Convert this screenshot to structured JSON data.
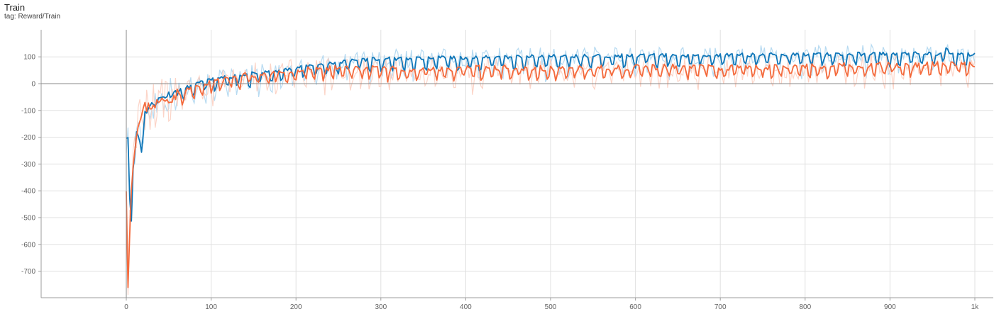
{
  "header": {
    "title": "Train",
    "subtitle": "tag: Reward/Train"
  },
  "colors": {
    "series_blue": "#0f76b8",
    "series_orange": "#f46a3c",
    "raw_blue": "#a9d3ef",
    "raw_orange": "#fbcdbd",
    "grid": "#e0e0e0",
    "axis": "#9e9e9e"
  },
  "chart_data": {
    "type": "line",
    "title": "Train",
    "subtitle": "tag: Reward/Train",
    "xlabel": "",
    "ylabel": "",
    "xlim": [
      -100,
      1000
    ],
    "ylim": [
      -800,
      200
    ],
    "x_ticks": [
      0,
      100,
      200,
      300,
      400,
      500,
      600,
      700,
      800,
      900,
      1000
    ],
    "x_tick_labels": [
      "0",
      "100",
      "200",
      "300",
      "400",
      "500",
      "600",
      "700",
      "800",
      "900",
      "1k"
    ],
    "y_ticks": [
      100,
      0,
      -100,
      -200,
      -300,
      -400,
      -500,
      -600,
      -700
    ],
    "y_tick_labels": [
      "100",
      "0",
      "-100",
      "-200",
      "-300",
      "-400",
      "-500",
      "-600",
      "-700"
    ],
    "grid": true,
    "series": [
      {
        "color": "#0f76b8",
        "raw_color": "#a9d3ef",
        "x": [
          0,
          2,
          4,
          6,
          8,
          10,
          12,
          15,
          18,
          22,
          26,
          30,
          40,
          50,
          60,
          70,
          80,
          90,
          100,
          120,
          140,
          160,
          180,
          200,
          220,
          250,
          280,
          300,
          350,
          400,
          450,
          500,
          550,
          600,
          650,
          700,
          750,
          800,
          850,
          900,
          940,
          960,
          965,
          970,
          980,
          990,
          1000
        ],
        "y": [
          -190,
          -200,
          -420,
          -500,
          -330,
          -260,
          -180,
          -200,
          -250,
          -110,
          -90,
          -80,
          -55,
          -40,
          -30,
          -15,
          -5,
          5,
          15,
          25,
          35,
          40,
          45,
          60,
          70,
          80,
          90,
          92,
          95,
          98,
          100,
          102,
          104,
          104,
          106,
          106,
          108,
          110,
          110,
          112,
          112,
          110,
          140,
          115,
          110,
          108,
          112
        ]
      },
      {
        "color": "#f46a3c",
        "raw_color": "#fbcdbd",
        "x": [
          0,
          2,
          4,
          6,
          8,
          10,
          12,
          15,
          18,
          22,
          26,
          30,
          40,
          50,
          60,
          70,
          80,
          90,
          100,
          120,
          140,
          160,
          180,
          200,
          220,
          250,
          280,
          300,
          350,
          400,
          450,
          500,
          550,
          600,
          650,
          700,
          750,
          800,
          850,
          900,
          950,
          1000
        ],
        "y": [
          -380,
          -740,
          -560,
          -400,
          -300,
          -230,
          -180,
          -160,
          -120,
          -90,
          -85,
          -80,
          -70,
          -55,
          -40,
          -25,
          -12,
          -5,
          5,
          20,
          30,
          38,
          42,
          50,
          55,
          58,
          60,
          55,
          55,
          58,
          60,
          55,
          58,
          60,
          62,
          60,
          62,
          65,
          68,
          70,
          72,
          70
        ]
      }
    ]
  }
}
